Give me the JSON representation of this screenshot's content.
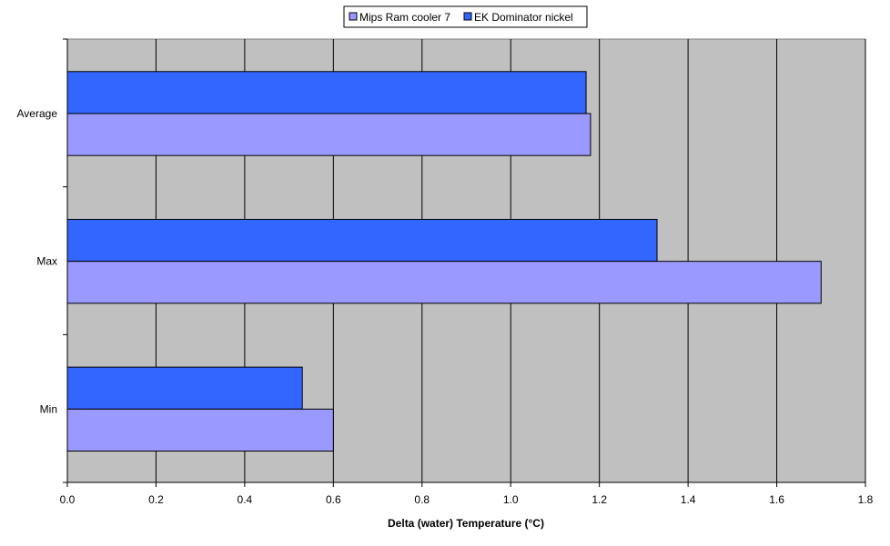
{
  "chart_data": {
    "type": "bar",
    "orientation": "horizontal",
    "categories": [
      "Average",
      "Max",
      "Min"
    ],
    "series": [
      {
        "name": "Mips Ram cooler 7",
        "color": "#9999ff",
        "values": [
          1.18,
          1.7,
          0.6
        ]
      },
      {
        "name": "EK Dominator nickel",
        "color": "#3366ff",
        "values": [
          1.17,
          1.33,
          0.53
        ]
      }
    ],
    "xlabel": "Delta (water) Temperature (°C)",
    "ylabel": "",
    "xlim": [
      0,
      1.8
    ],
    "xticks": [
      "0.0",
      "0.2",
      "0.4",
      "0.6",
      "0.8",
      "1.0",
      "1.2",
      "1.4",
      "1.6",
      "1.8"
    ],
    "grid": true,
    "plot_background": "#c0c0c0",
    "legend_placement": "top"
  }
}
